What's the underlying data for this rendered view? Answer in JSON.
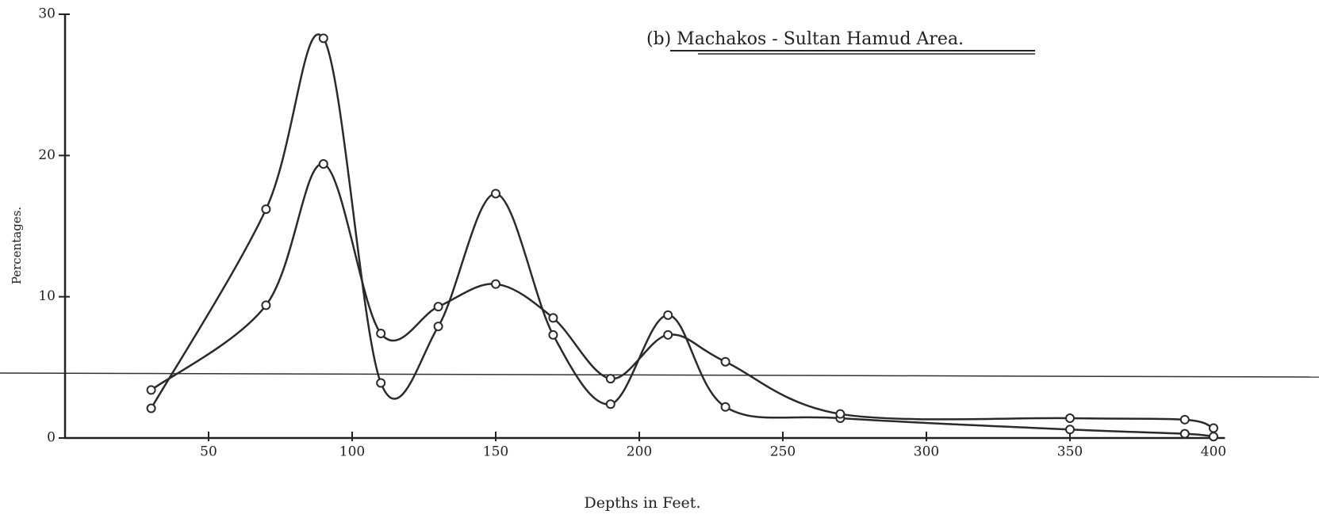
{
  "chart_data": {
    "type": "line",
    "title": "(b) Machakos - Sultan Hamud Area.",
    "x_label": "Depths in Feet.",
    "y_label": "Percentages.",
    "x": [
      30,
      70,
      90,
      110,
      130,
      150,
      170,
      190,
      210,
      230,
      270,
      350,
      390,
      400
    ],
    "series": [
      {
        "color": "#2a2a2a",
        "values": [
          2.1,
          16.2,
          28.3,
          3.9,
          7.9,
          17.3,
          7.3,
          2.4,
          8.7,
          2.2,
          1.4,
          0.6,
          0.3,
          0.1
        ]
      },
      {
        "color": "#2a2a2a",
        "values": [
          3.4,
          9.4,
          19.4,
          7.4,
          9.3,
          10.9,
          8.5,
          4.2,
          7.3,
          5.4,
          1.7,
          1.4,
          1.3,
          0.7
        ]
      }
    ],
    "xlim": [
      0,
      404
    ],
    "ylim": [
      0,
      30
    ],
    "xticks": [
      50,
      100,
      150,
      200,
      250,
      300,
      350,
      400
    ],
    "yticks": [
      0,
      10,
      20,
      30
    ]
  }
}
